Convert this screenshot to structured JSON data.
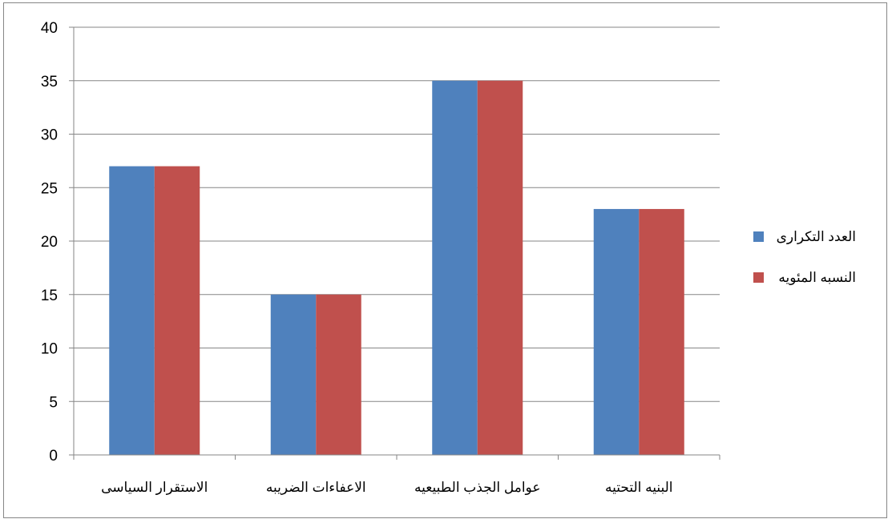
{
  "chart_data": {
    "type": "bar",
    "title": "",
    "xlabel": "",
    "ylabel": "",
    "categories": [
      "الاستقرار السياسى",
      "الاعفاءات الضريبه",
      "عوامل الجذب الطبيعيه",
      "البنيه التحتيه"
    ],
    "series": [
      {
        "name": "العدد التكرارى",
        "values": [
          27,
          15,
          35,
          23
        ],
        "color": "#4F81BD"
      },
      {
        "name": "النسبه المئويه",
        "values": [
          27,
          15,
          35,
          23
        ],
        "color": "#C0504D"
      }
    ],
    "ylim": [
      0,
      40
    ],
    "yticks": [
      0,
      5,
      10,
      15,
      20,
      25,
      30,
      35,
      40
    ],
    "grid": true,
    "legend_position": "right",
    "gridline_color": "#868686"
  }
}
